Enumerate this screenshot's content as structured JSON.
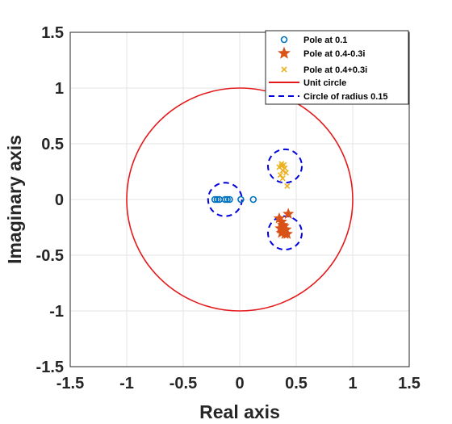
{
  "chart_data": {
    "type": "scatter",
    "xlabel": "Real axis",
    "ylabel": "Imaginary axis",
    "xlim": [
      -1.5,
      1.5
    ],
    "ylim": [
      -1.5,
      1.5
    ],
    "xticks": [
      "-1.5",
      "-1",
      "-0.5",
      "0",
      "0.5",
      "1",
      "1.5"
    ],
    "yticks": [
      "1.5",
      "1",
      "0.5",
      "0",
      "-0.5",
      "-1",
      "-1.5"
    ],
    "xtick_values": [
      -1.5,
      -1,
      -0.5,
      0,
      0.5,
      1,
      1.5
    ],
    "ytick_values": [
      1.5,
      1,
      0.5,
      0,
      -0.5,
      -1,
      -1.5
    ],
    "grid": true,
    "legend_position": "top-right",
    "series": [
      {
        "name": "Pole at 0.1",
        "marker": "circle",
        "color": "#0072BD",
        "x": [
          -0.22,
          -0.2,
          -0.18,
          -0.13,
          -0.11,
          -0.09,
          0.01,
          0.12
        ],
        "y": [
          0,
          0,
          0,
          0,
          0,
          0,
          0,
          0
        ]
      },
      {
        "name": "Pole at 0.4-0.3i",
        "marker": "star",
        "color": "#D95319",
        "x": [
          0.35,
          0.37,
          0.36,
          0.38,
          0.39,
          0.4,
          0.42,
          0.41,
          0.37,
          0.39,
          0.43
        ],
        "y": [
          -0.17,
          -0.2,
          -0.26,
          -0.23,
          -0.28,
          -0.31,
          -0.31,
          -0.27,
          -0.3,
          -0.24,
          -0.13
        ]
      },
      {
        "name": "Pole at 0.4+0.3i",
        "marker": "x",
        "color": "#EDB120",
        "x": [
          0.35,
          0.37,
          0.39,
          0.38,
          0.4,
          0.41,
          0.36,
          0.38,
          0.42,
          0.37
        ],
        "y": [
          0.29,
          0.3,
          0.31,
          0.26,
          0.28,
          0.24,
          0.22,
          0.19,
          0.12,
          0.32
        ]
      },
      {
        "name": "Unit circle",
        "type": "circle",
        "line": "solid",
        "color": "#E41A1C",
        "center": [
          0,
          0
        ],
        "radius": 1
      },
      {
        "name": "Circle of radius 0.15",
        "type": "circle",
        "line": "dashed",
        "color": "#0000E0",
        "circles": [
          {
            "center": [
              -0.13,
              0
            ],
            "radius": 0.15
          },
          {
            "center": [
              0.4,
              0.3
            ],
            "radius": 0.15
          },
          {
            "center": [
              0.4,
              -0.3
            ],
            "radius": 0.15
          }
        ]
      }
    ]
  }
}
